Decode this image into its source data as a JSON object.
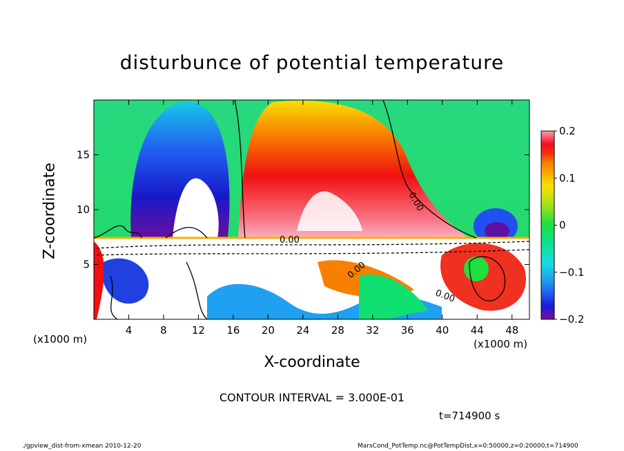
{
  "chart_data": {
    "type": "heatmap",
    "title": "disturbunce of potential temperature",
    "xlabel": "X-coordinate",
    "ylabel": "Z-coordinate",
    "x_unit_label": "(x1000 m)",
    "xlim": [
      0,
      50
    ],
    "ylim": [
      0,
      20
    ],
    "x_ticks": [
      4,
      8,
      12,
      16,
      20,
      24,
      28,
      32,
      36,
      40,
      44,
      48
    ],
    "y_ticks": [
      5,
      10,
      15
    ],
    "colorbar": {
      "range": [
        -0.2,
        0.2
      ],
      "ticks": [
        0.2,
        0.1,
        0,
        -0.1,
        -0.2
      ],
      "tick_labels": [
        "0.2",
        "0.1",
        "0",
        "−0.1",
        "−0.2"
      ],
      "colors": [
        "#7a0fa0",
        "#1a1ad8",
        "#2060f0",
        "#1fa0f0",
        "#17d8e8",
        "#10e0a0",
        "#20e040",
        "#80e020",
        "#d0e010",
        "#f8e000",
        "#f8b000",
        "#f88000",
        "#f83010",
        "#f01020",
        "#f86070",
        "#f8a0b0"
      ]
    },
    "contour_interval_label": "CONTOUR INTERVAL = 3.000E-01",
    "contour_labels": [
      "0.00",
      "0.00",
      "0.00",
      "0.00"
    ],
    "time_label": "t=714900 s"
  },
  "footer": {
    "left": "./gpview_dist-from-xmean  2010-12-20",
    "right": "MarsCond_PotTemp.nc@PotTempDist,x=0:50000,z=0:20000,t=714900"
  }
}
